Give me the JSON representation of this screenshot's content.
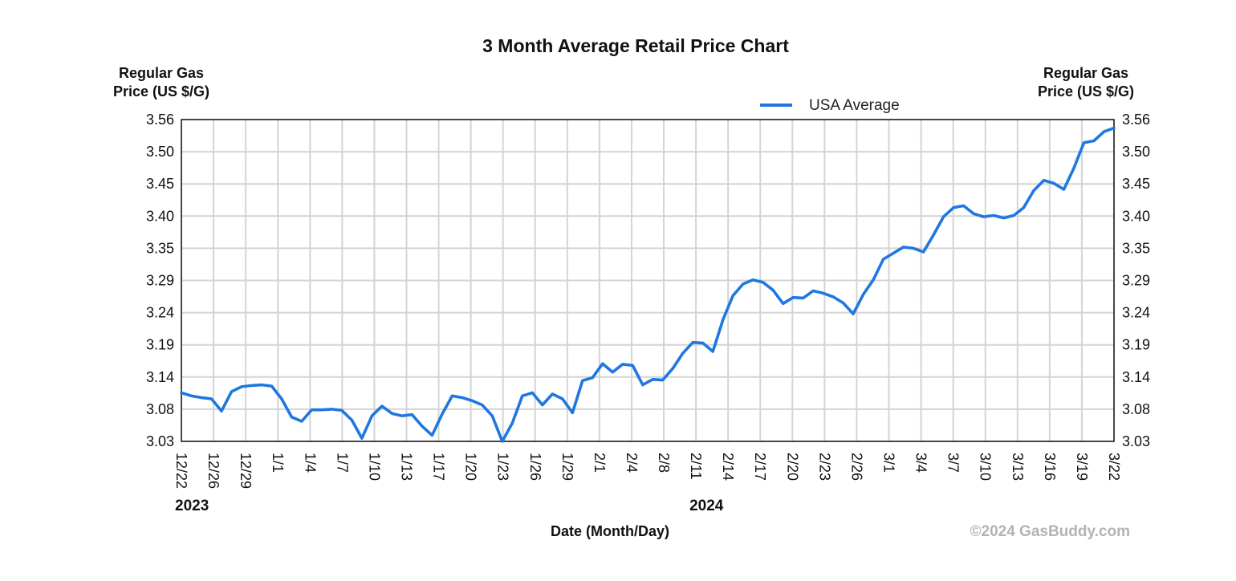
{
  "chart_data": {
    "type": "line",
    "title": "3 Month Average Retail Price Chart",
    "ylabel_left": [
      "Regular Gas",
      "Price (US $/G)"
    ],
    "ylabel_right": [
      "Regular Gas",
      "Price (US $/G)"
    ],
    "xlabel": "Date (Month/Day)",
    "credit": "©2024 GasBuddy.com",
    "ylim": [
      3.03,
      3.56
    ],
    "y_ticks": [
      "3.56",
      "3.50",
      "3.45",
      "3.40",
      "3.35",
      "3.29",
      "3.24",
      "3.19",
      "3.14",
      "3.08",
      "3.03"
    ],
    "x_ticks": [
      "12/22",
      "12/26",
      "12/29",
      "1/1",
      "1/4",
      "1/7",
      "1/10",
      "1/13",
      "1/17",
      "1/20",
      "1/23",
      "1/26",
      "1/29",
      "2/1",
      "2/4",
      "2/8",
      "2/11",
      "2/14",
      "2/17",
      "2/20",
      "2/23",
      "2/26",
      "3/1",
      "3/4",
      "3/7",
      "3/10",
      "3/13",
      "3/16",
      "3/19",
      "3/22"
    ],
    "year_labels": [
      {
        "text": "2023",
        "at_tick": "12/22"
      },
      {
        "text": "2024",
        "at_tick": "2/11"
      }
    ],
    "grid": true,
    "legend_position": "top-right",
    "series": [
      {
        "name": "USA Average",
        "color": "#1f77e0",
        "values": [
          3.11,
          3.105,
          3.102,
          3.1,
          3.08,
          3.112,
          3.12,
          3.122,
          3.123,
          3.121,
          3.1,
          3.07,
          3.063,
          3.082,
          3.082,
          3.083,
          3.081,
          3.065,
          3.035,
          3.072,
          3.088,
          3.076,
          3.072,
          3.074,
          3.055,
          3.04,
          3.075,
          3.105,
          3.102,
          3.097,
          3.09,
          3.072,
          3.03,
          3.06,
          3.105,
          3.11,
          3.09,
          3.108,
          3.1,
          3.077,
          3.13,
          3.135,
          3.158,
          3.144,
          3.157,
          3.155,
          3.123,
          3.132,
          3.131,
          3.15,
          3.175,
          3.193,
          3.192,
          3.178,
          3.23,
          3.27,
          3.289,
          3.296,
          3.292,
          3.279,
          3.257,
          3.267,
          3.266,
          3.278,
          3.274,
          3.268,
          3.258,
          3.24,
          3.272,
          3.296,
          3.33,
          3.34,
          3.35,
          3.348,
          3.342,
          3.37,
          3.4,
          3.415,
          3.418,
          3.405,
          3.4,
          3.402,
          3.398,
          3.402,
          3.415,
          3.443,
          3.46,
          3.455,
          3.445,
          3.48,
          3.522,
          3.525,
          3.54,
          3.546
        ]
      }
    ]
  }
}
